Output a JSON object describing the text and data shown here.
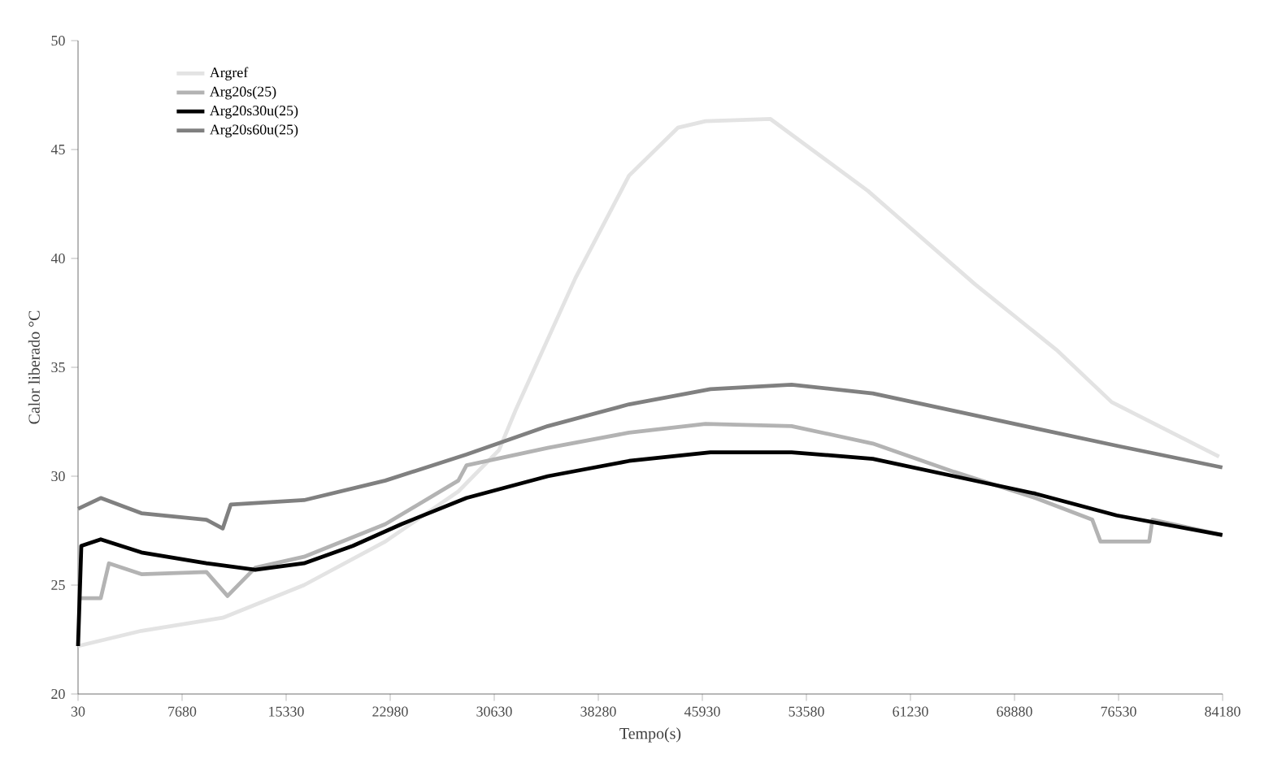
{
  "chart_data": {
    "type": "line",
    "xlabel": "Tempo(s)",
    "ylabel": "Calor liberado °C",
    "xlim": [
      30,
      84180
    ],
    "xticks": [
      30,
      7680,
      15330,
      22980,
      30630,
      38280,
      45930,
      53580,
      61230,
      68880,
      76530,
      84180
    ],
    "ylim": [
      20,
      50
    ],
    "yticks": [
      20,
      25,
      30,
      35,
      40,
      45,
      50
    ],
    "legend": "top left",
    "grid": false,
    "marker": "none",
    "line_style": "solid",
    "series": [
      {
        "name": "Argref",
        "color": "#e3e3e3",
        "x": [
          30,
          4690,
          10670,
          16640,
          22620,
          27990,
          30980,
          32180,
          36600,
          40540,
          44130,
          46160,
          50940,
          58100,
          66000,
          71970,
          76030,
          83920
        ],
        "values": [
          22.2,
          22.9,
          23.5,
          25,
          27,
          29.3,
          31.2,
          33,
          39.1,
          43.8,
          46,
          46.3,
          46.4,
          43.1,
          38.8,
          35.8,
          33.4,
          30.9
        ]
      },
      {
        "name": "Arg20s(25)",
        "color": "#b3b3b3",
        "x": [
          30,
          1700,
          2300,
          4690,
          9470,
          11020,
          13060,
          16640,
          22620,
          27990,
          28590,
          34570,
          40540,
          46160,
          52490,
          58460,
          64440,
          70410,
          74600,
          75200,
          78780,
          79020,
          84160
        ],
        "values": [
          24.4,
          24.4,
          26,
          25.5,
          25.6,
          24.5,
          25.8,
          26.3,
          27.8,
          29.8,
          30.5,
          31.3,
          32,
          32.4,
          32.3,
          31.5,
          30.2,
          29,
          28,
          27,
          27,
          28,
          27.3
        ]
      },
      {
        "name": "Arg20s30u(25)",
        "color": "#000000",
        "x": [
          30,
          270,
          1700,
          4690,
          9470,
          13060,
          16640,
          20230,
          23810,
          28590,
          34570,
          40540,
          46520,
          52490,
          58460,
          64440,
          70410,
          76390,
          84160
        ],
        "values": [
          22.2,
          26.8,
          27.1,
          26.5,
          26,
          25.7,
          26,
          26.8,
          27.8,
          29,
          30,
          30.7,
          31.1,
          31.1,
          30.8,
          30,
          29.2,
          28.2,
          27.3
        ]
      },
      {
        "name": "Arg20s60u(25)",
        "color": "#808080",
        "x": [
          30,
          1700,
          4690,
          9470,
          10670,
          11260,
          16640,
          22620,
          28590,
          34570,
          40540,
          46520,
          52490,
          58460,
          64440,
          70410,
          76390,
          84160
        ],
        "values": [
          28.5,
          29,
          28.3,
          28,
          27.6,
          28.7,
          28.9,
          29.8,
          31,
          32.3,
          33.3,
          34,
          34.2,
          33.8,
          33,
          32.2,
          31.4,
          30.4
        ]
      }
    ]
  }
}
